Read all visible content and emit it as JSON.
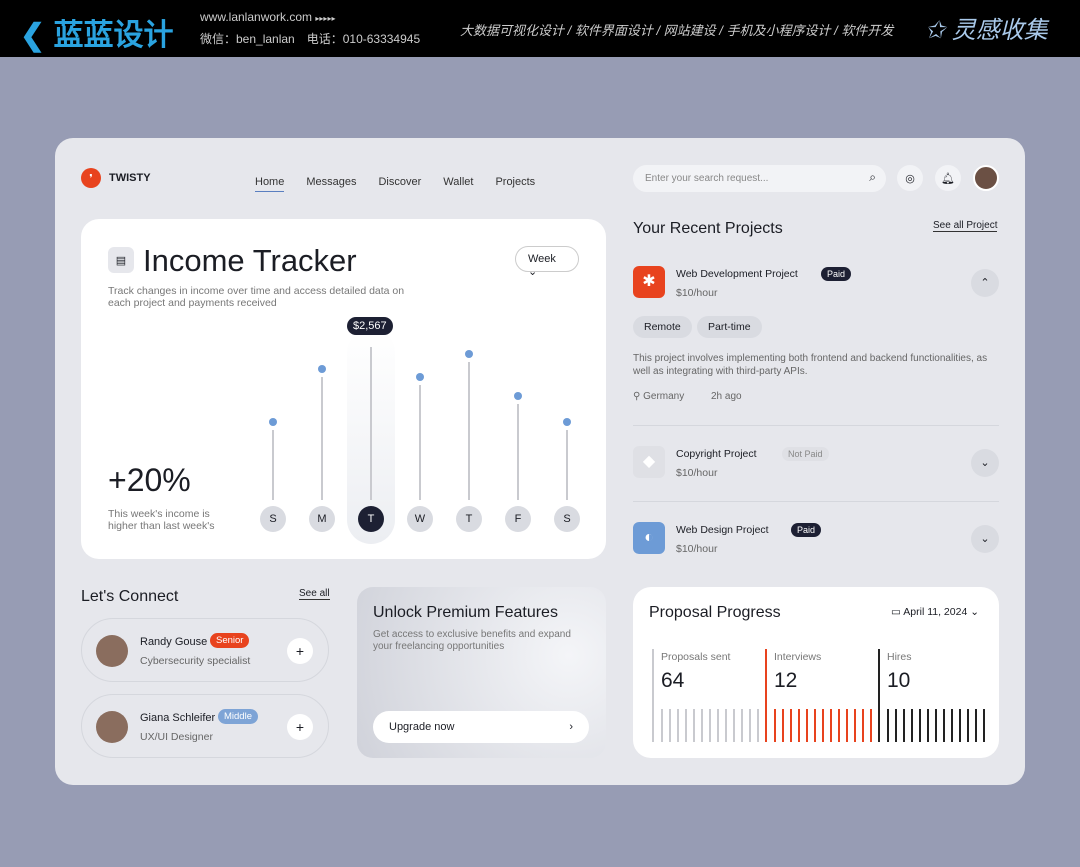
{
  "banner": {
    "brand": "蓝蓝设计",
    "url": "www.lanlanwork.com",
    "arrows": "▸▸▸▸▸",
    "contact": "微信：ben_lanlan　电话：010-63334945",
    "services": "大数据可视化设计 / 软件界面设计 / 网站建设 / 手机及小程序设计 / 软件开发",
    "right_brand": "灵感收集"
  },
  "app": {
    "logo": "TWISTY",
    "nav": [
      "Home",
      "Messages",
      "Discover",
      "Wallet",
      "Projects"
    ],
    "active_nav": "Home",
    "search_placeholder": "Enter your search request..."
  },
  "income": {
    "title": "Income Tracker",
    "desc": "Track changes in income over time and access detailed data on each project and payments received",
    "range": "Week",
    "percent": "+20%",
    "note": "This week's income is higher than last week's",
    "tooltip": "$2,567",
    "days": [
      "S",
      "M",
      "T",
      "W",
      "T",
      "F",
      "S"
    ],
    "levels": [
      0.45,
      0.8,
      1.0,
      0.75,
      0.9,
      0.62,
      0.45
    ],
    "active_index": 2
  },
  "connect": {
    "title": "Let's Connect",
    "see_all": "See all",
    "people": [
      {
        "name": "Randy Gouse",
        "badge": "Senior",
        "role": "Cybersecurity specialist",
        "badge_color": "#e8431e"
      },
      {
        "name": "Giana Schleifer",
        "badge": "Middle",
        "role": "UX/UI Designer",
        "badge_color": "#7ea4d6"
      }
    ]
  },
  "premium": {
    "title": "Unlock Premium Features",
    "desc": "Get access to exclusive benefits and expand your freelancing opportunities",
    "button": "Upgrade now"
  },
  "projects": {
    "title": "Your Recent Projects",
    "see_all": "See all Project",
    "items": [
      {
        "name": "Web Development Project",
        "status": "Paid",
        "rate": "$10/hour",
        "tags": [
          "Remote",
          "Part-time"
        ],
        "desc": "This project involves implementing both frontend and backend functionalities, as well as integrating with third-party APIs.",
        "location": "Germany",
        "time": "2h ago",
        "icon_color": "#e8431e"
      },
      {
        "name": "Copyright Project",
        "status": "Not Paid",
        "rate": "$10/hour",
        "icon_color": "#dfe0e5"
      },
      {
        "name": "Web Design Project",
        "status": "Paid",
        "rate": "$10/hour",
        "icon_color": "#6d9bd6"
      }
    ]
  },
  "proposal": {
    "title": "Proposal Progress",
    "date": "April 11, 2024",
    "stats": [
      {
        "label": "Proposals sent",
        "value": "64",
        "color": "#c9cacf"
      },
      {
        "label": "Interviews",
        "value": "12",
        "color": "#e8431e"
      },
      {
        "label": "Hires",
        "value": "10",
        "color": "#222"
      }
    ]
  }
}
